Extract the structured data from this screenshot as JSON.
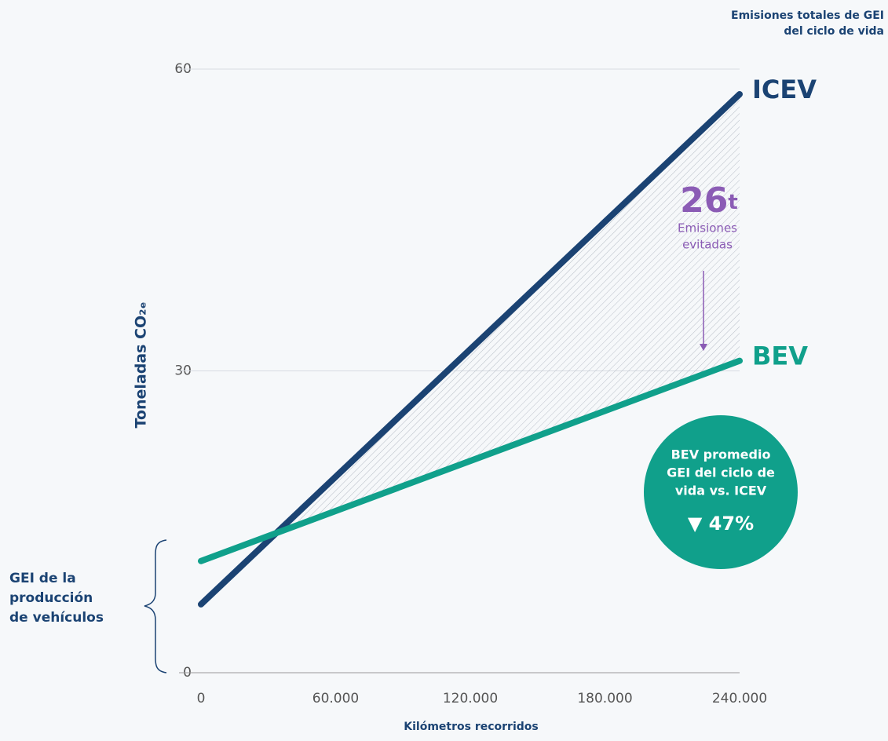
{
  "chart_data": {
    "type": "line",
    "title": [
      "Emisiones totales de GEI",
      "del ciclo de vida"
    ],
    "x_label": "Kilómetros recorridos",
    "y_label": "Toneladas CO₂ₑ",
    "x": [
      0,
      240000
    ],
    "series": [
      {
        "name": "ICEV",
        "color": "#1b4373",
        "values": [
          6.8,
          57.5
        ]
      },
      {
        "name": "BEV",
        "color": "#10a08b",
        "values": [
          11.1,
          31
        ]
      }
    ],
    "xlim": [
      0,
      240000
    ],
    "xticks": [
      0,
      {
        "value": 60000,
        "label": "60.000"
      },
      {
        "value": 120000,
        "label": "120.000"
      },
      {
        "value": 180000,
        "label": "180.000"
      },
      {
        "value": 240000,
        "label": "240.000"
      }
    ],
    "ylim": [
      0,
      60
    ],
    "yticks": [
      0,
      30,
      60
    ],
    "grid": true,
    "avoided": {
      "value": 26,
      "unit": "t",
      "lines": [
        "Emisiones",
        "evitadas"
      ],
      "color": "#8b5cb5"
    },
    "badge": {
      "lines": [
        "BEV promedio",
        "GEI del ciclo de",
        "vida vs. ICEV"
      ],
      "change": "▼ 47%",
      "color": "#10a08b"
    },
    "production_note": [
      "GEI de la",
      "producción",
      "de vehículos"
    ]
  }
}
